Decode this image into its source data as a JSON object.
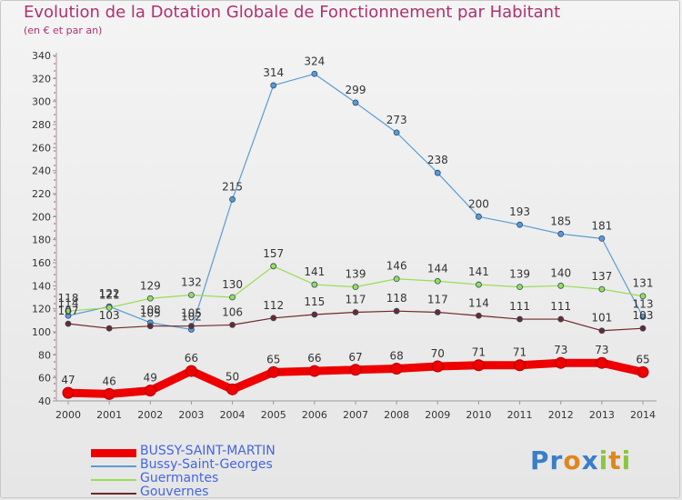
{
  "title": "Evolution de la Dotation Globale de Fonctionnement par Habitant",
  "subtitle": "(en € et par an)",
  "logo": {
    "text": "Proxiti"
  },
  "chart_data": {
    "type": "line",
    "x": [
      "2000",
      "2001",
      "2002",
      "2003",
      "2004",
      "2005",
      "2006",
      "2007",
      "2008",
      "2009",
      "2010",
      "2011",
      "2012",
      "2013",
      "2014"
    ],
    "ylim": [
      40,
      340
    ],
    "yticks": [
      40,
      60,
      80,
      100,
      120,
      140,
      160,
      180,
      200,
      220,
      240,
      260,
      280,
      300,
      320,
      340
    ],
    "grid": false,
    "legend_position": "bottom-left",
    "series": [
      {
        "name": "BUSSY-SAINT-MARTIN",
        "color": "#ee0000",
        "values": [
          47,
          46,
          49,
          66,
          50,
          65,
          66,
          67,
          68,
          70,
          71,
          71,
          73,
          73,
          65
        ]
      },
      {
        "name": "Bussy-Saint-Georges",
        "color": "#5b9bd5",
        "values": [
          114,
          122,
          108,
          102,
          215,
          314,
          324,
          299,
          273,
          238,
          200,
          193,
          185,
          181,
          113
        ]
      },
      {
        "name": "Guermantes",
        "color": "#99dd55",
        "values": [
          118,
          121,
          129,
          132,
          130,
          157,
          141,
          139,
          146,
          144,
          141,
          139,
          140,
          137,
          131
        ]
      },
      {
        "name": "Gouvernes",
        "color": "#702828",
        "values": [
          107,
          103,
          105,
          105,
          106,
          112,
          115,
          117,
          118,
          117,
          114,
          111,
          111,
          101,
          103
        ]
      }
    ]
  }
}
